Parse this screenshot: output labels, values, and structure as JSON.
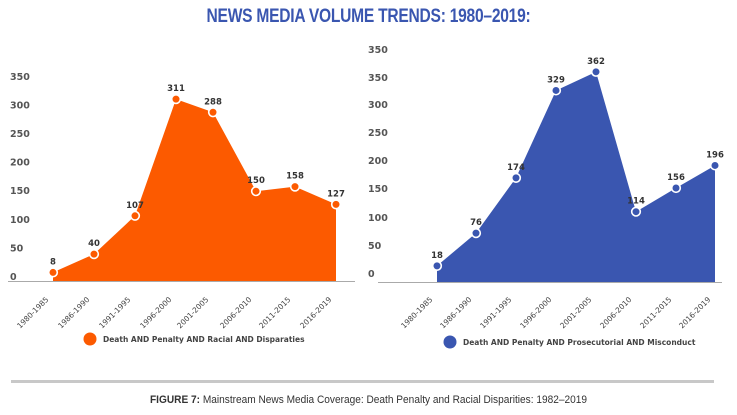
{
  "title": "NEWS MEDIA VOLUME TRENDS: 1980–2019:",
  "caption": {
    "prefix": "FIGURE 7:",
    "text": " Mainstream News Media Coverage: Death Penalty and Racial Disparities: 1982–2019"
  },
  "chart_data": [
    {
      "type": "area",
      "categories": [
        "1980-1985",
        "1986-1990",
        "1991-1995",
        "1996-2000",
        "2001-2005",
        "2006-2010",
        "2011-2015",
        "2016-2019"
      ],
      "series": [
        {
          "name": "Death AND Penalty AND Racial AND Disparaties",
          "values": [
            8,
            40,
            107,
            311,
            288,
            150,
            158,
            127
          ],
          "color": "#fc5a00"
        }
      ],
      "yticks": [
        "0",
        "50",
        "100",
        "150",
        "200",
        "250",
        "300",
        "350"
      ],
      "ylim": [
        0,
        350
      ],
      "xlabel": "",
      "ylabel": "",
      "grid": false,
      "legend": "bottom-center"
    },
    {
      "type": "area",
      "categories": [
        "1980-1985",
        "1986-1990",
        "1991-1995",
        "1996-2000",
        "2001-2005",
        "2006-2010",
        "2011-2015",
        "2016-2019"
      ],
      "series": [
        {
          "name": "Death AND Penalty AND Prosecutorial AND Misconduct",
          "values": [
            18,
            76,
            174,
            329,
            362,
            114,
            156,
            196
          ],
          "color": "#3a56b0"
        }
      ],
      "yticks": [
        "0",
        "50",
        "100",
        "150",
        "200",
        "250",
        "300",
        "350",
        "350"
      ],
      "ylim": [
        0,
        400
      ],
      "xlabel": "",
      "ylabel": "",
      "grid": false,
      "legend": "bottom-center"
    }
  ]
}
